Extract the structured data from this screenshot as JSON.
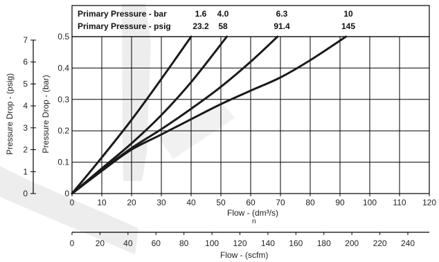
{
  "chart_data": {
    "type": "line",
    "x_unit_label": "Flow - (dm³/s)",
    "x_unit_subscript": "n",
    "x2_label": "Flow - (scfm)",
    "y_label_bar": "Pressure Drop - (bar)",
    "y_label_psig": "Pressure Drop - (psig)",
    "xlim": [
      0,
      120
    ],
    "ylim_bar": [
      0,
      0.5
    ],
    "ylim_psig": [
      0,
      7
    ],
    "x2lim": [
      0,
      240
    ],
    "x_ticks": [
      0,
      10,
      20,
      30,
      40,
      50,
      60,
      70,
      80,
      90,
      100,
      110,
      120
    ],
    "y_ticks_bar": [
      0,
      0.1,
      0.2,
      0.3,
      0.4,
      0.5
    ],
    "y_ticks_psig": [
      0,
      1,
      2,
      3,
      4,
      5,
      6,
      7
    ],
    "x2_ticks": [
      0,
      20,
      40,
      60,
      80,
      100,
      120,
      140,
      160,
      180,
      200,
      220,
      240
    ],
    "grid": true,
    "header": {
      "row1_label": "Primary Pressure - bar",
      "row2_label": "Primary Pressure - psig",
      "bar_values": [
        "1.6",
        "4.0",
        "6.3",
        "10"
      ],
      "psig_values": [
        "23.2",
        "58",
        "91.4",
        "145"
      ]
    },
    "series": [
      {
        "x": [
          0,
          10,
          20,
          30,
          40
        ],
        "y": [
          0,
          0.115,
          0.235,
          0.365,
          0.5
        ]
      },
      {
        "x": [
          0,
          10,
          20,
          30,
          40,
          52
        ],
        "y": [
          0,
          0.08,
          0.16,
          0.25,
          0.355,
          0.5
        ]
      },
      {
        "x": [
          0,
          10,
          20,
          30,
          40,
          50,
          60,
          69
        ],
        "y": [
          0,
          0.075,
          0.145,
          0.205,
          0.27,
          0.34,
          0.42,
          0.5
        ]
      },
      {
        "x": [
          0,
          10,
          20,
          30,
          40,
          50,
          60,
          70,
          80,
          92
        ],
        "y": [
          0,
          0.072,
          0.14,
          0.188,
          0.237,
          0.285,
          0.328,
          0.37,
          0.425,
          0.5
        ]
      }
    ],
    "line_color": "#1a1a1a",
    "watermark_color": "#ededed"
  }
}
